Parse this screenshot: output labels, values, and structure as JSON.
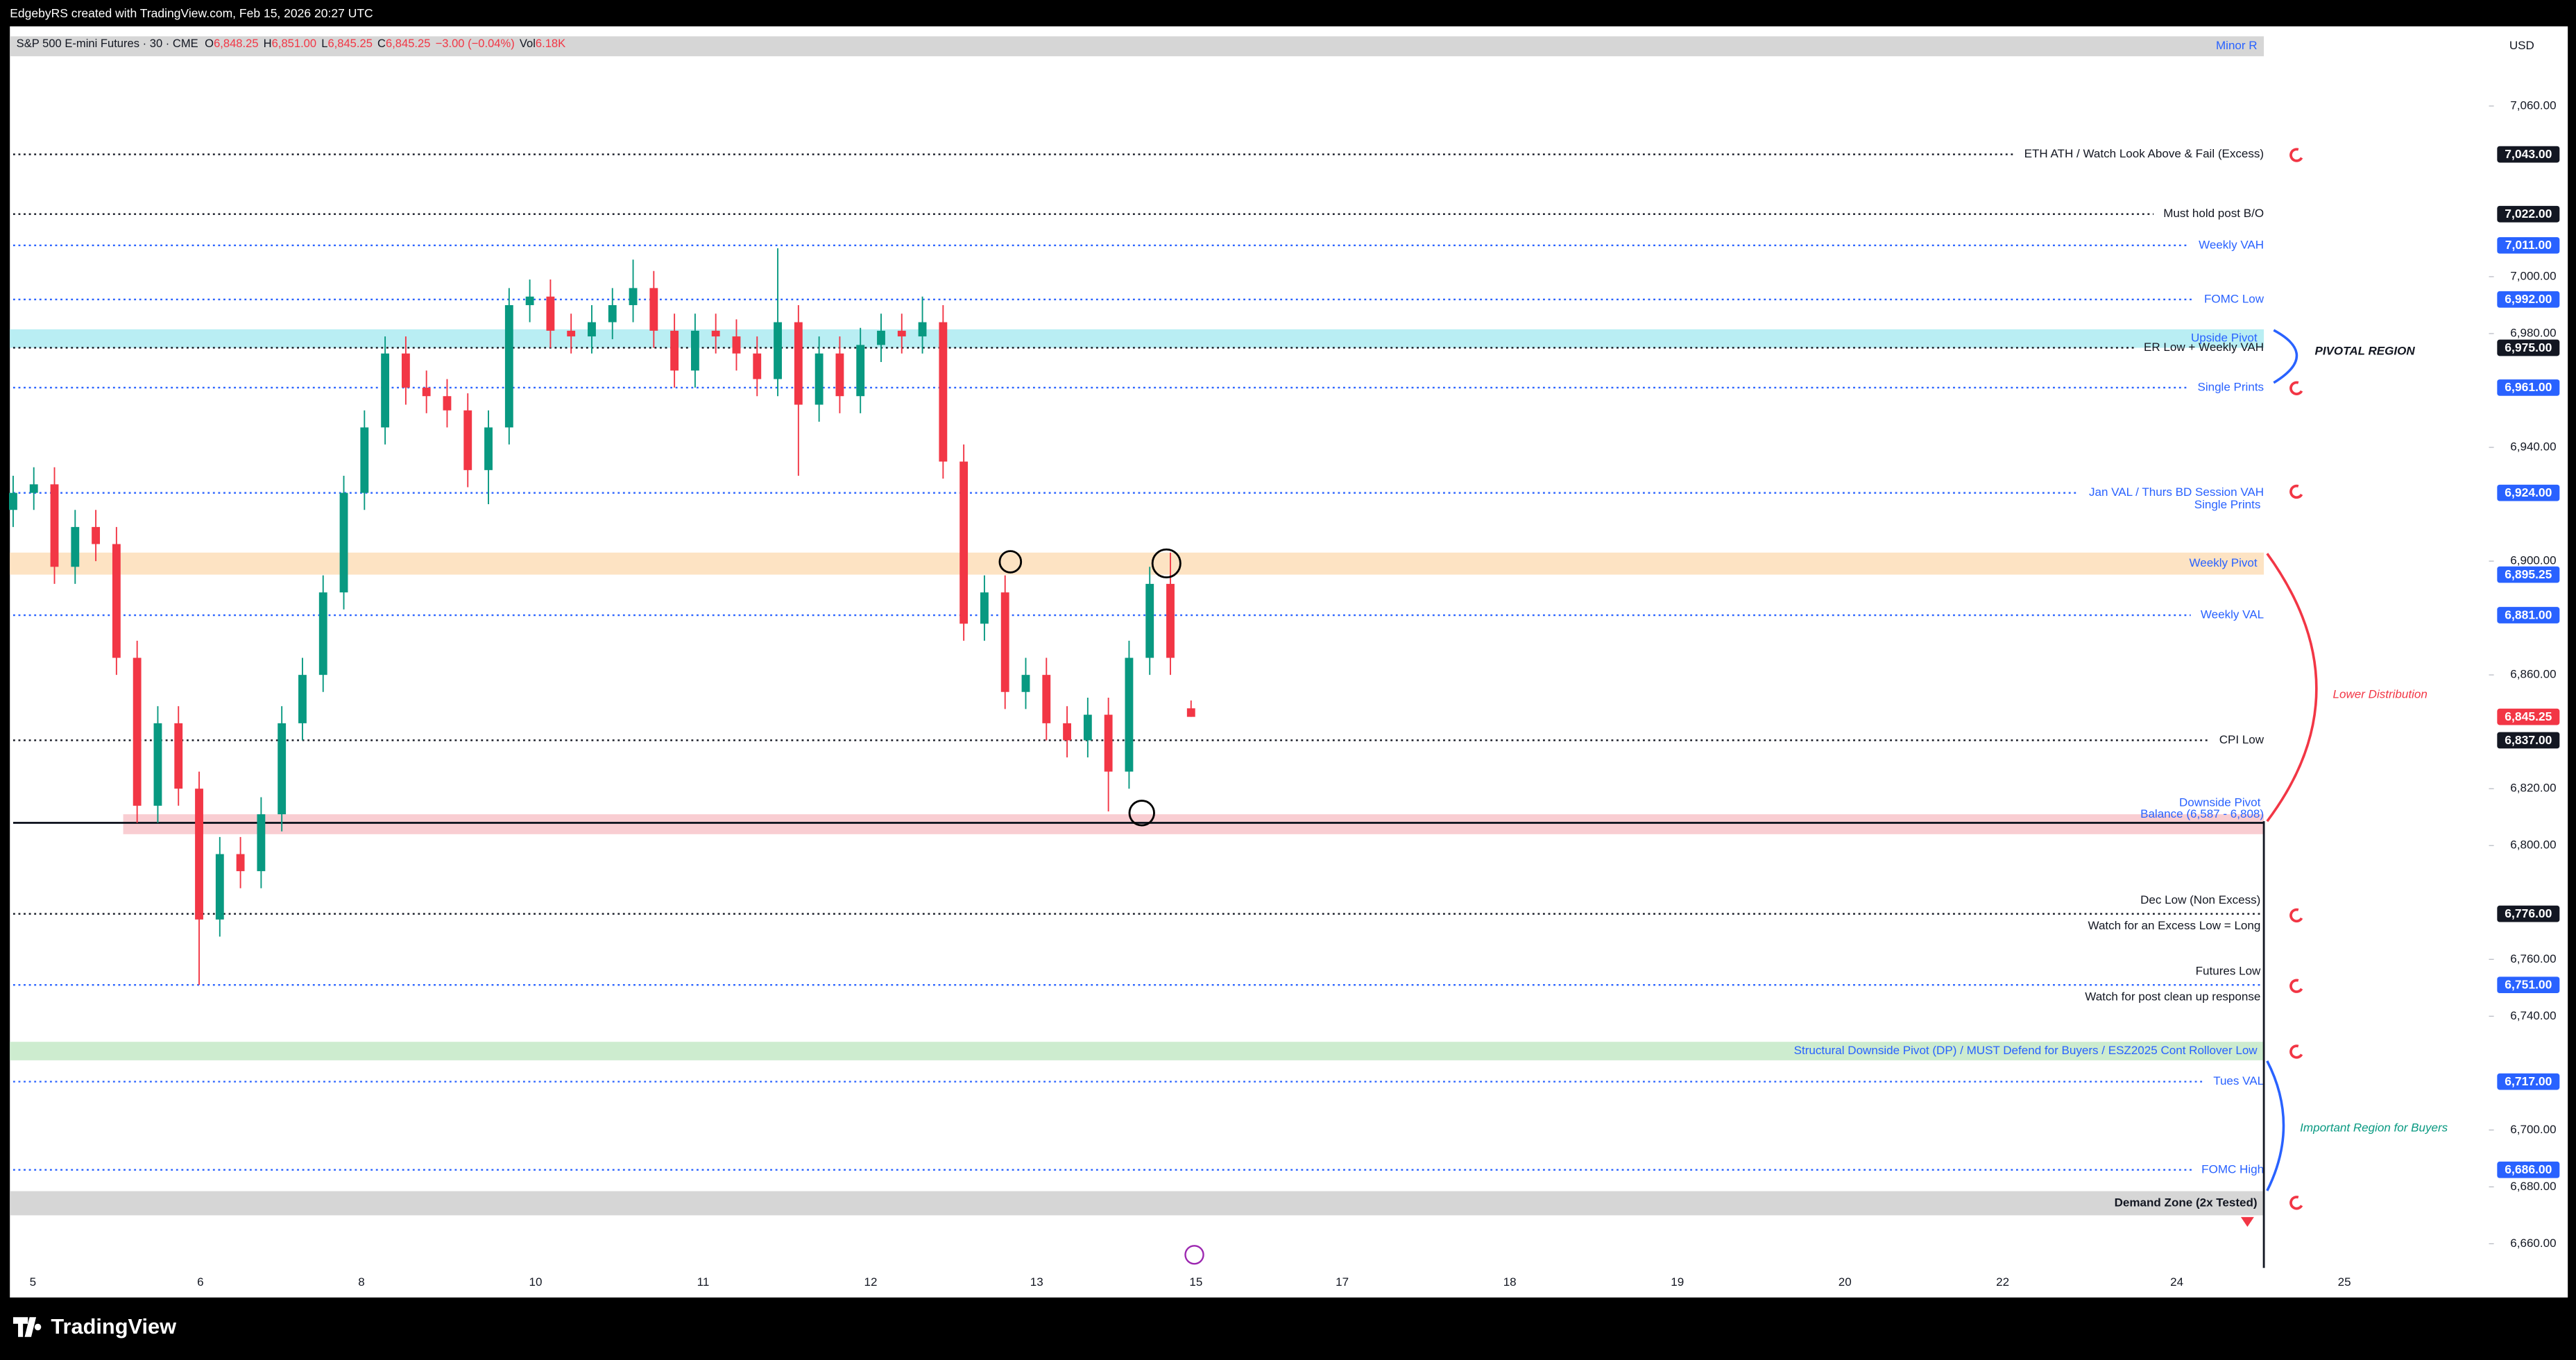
{
  "header": "EdgebyRS created with TradingView.com, Feb 15, 2026 20:27 UTC",
  "legend": {
    "symbol": "S&P 500 E-mini Futures · 30 · CME",
    "ohlc": [
      {
        "key": "O",
        "value": "6,848.25"
      },
      {
        "key": "H",
        "value": "6,851.00"
      },
      {
        "key": "L",
        "value": "6,845.25"
      },
      {
        "key": "C",
        "value": "6,845.25"
      }
    ],
    "change": "−3.00 (−0.04%)",
    "volume_key": "Vol",
    "volume": "6.18K"
  },
  "currency": "USD",
  "brand": "TradingView",
  "chart_data": {
    "type": "candlestick",
    "categories": [
      "5",
      "6",
      "8",
      "10",
      "11",
      "12",
      "13",
      "15",
      "17",
      "18",
      "19",
      "20",
      "22",
      "24",
      "25"
    ],
    "ylim": [
      6644,
      7088
    ],
    "yticks": [
      {
        "value": 7060,
        "label": "7,060.00"
      },
      {
        "value": 7000,
        "label": "7,000.00"
      },
      {
        "value": 6980,
        "label": "6,980.00"
      },
      {
        "value": 6940,
        "label": "6,940.00"
      },
      {
        "value": 6900,
        "label": "6,900.00"
      },
      {
        "value": 6860,
        "label": "6,860.00"
      },
      {
        "value": 6820,
        "label": "6,820.00"
      },
      {
        "value": 6800,
        "label": "6,800.00"
      },
      {
        "value": 6760,
        "label": "6,760.00"
      },
      {
        "value": 6740,
        "label": "6,740.00"
      },
      {
        "value": 6700,
        "label": "6,700.00"
      },
      {
        "value": 6680,
        "label": "6,680.00"
      },
      {
        "value": 6660,
        "label": "6,660.00"
      }
    ],
    "up_color": "#089981",
    "down_color": "#f23645",
    "open": [
      6918,
      6924,
      6927,
      6898,
      6912,
      6906,
      6866,
      6814,
      6843,
      6820,
      6774,
      6797,
      6791,
      6811,
      6843,
      6860,
      6889,
      6924,
      6947,
      6973,
      6961,
      6958,
      6953,
      6932,
      6947,
      6990,
      6993,
      6981,
      6979,
      6984,
      6990,
      6996,
      6981,
      6967,
      6981,
      6979,
      6973,
      6964,
      6984,
      6955,
      6973,
      6958,
      6976,
      6981,
      6979,
      6984,
      6935,
      6878,
      6889,
      6854,
      6860,
      6843,
      6837,
      6846,
      6826,
      6866,
      6892,
      6848.25
    ],
    "high": [
      6930,
      6933,
      6933,
      6918,
      6918,
      6912,
      6872,
      6849,
      6849,
      6826,
      6803,
      6803,
      6817,
      6849,
      6866,
      6895,
      6930,
      6953,
      6979,
      6979,
      6967,
      6964,
      6959,
      6953,
      6996,
      6999,
      6999,
      6987,
      6990,
      6996,
      7006,
      7002,
      6987,
      6987,
      6987,
      6985,
      6979,
      7010,
      6990,
      6979,
      6979,
      6982,
      6987,
      6987,
      6993,
      6990,
      6941,
      6895,
      6895,
      6866,
      6866,
      6849,
      6852,
      6852,
      6872,
      6898,
      6903,
      6851
    ],
    "low": [
      6912,
      6918,
      6892,
      6892,
      6900,
      6860,
      6808,
      6808,
      6814,
      6751,
      6768,
      6785,
      6785,
      6805,
      6837,
      6854,
      6883,
      6918,
      6941,
      6955,
      6952,
      6947,
      6926,
      6920,
      6941,
      6984,
      6975,
      6973,
      6973,
      6978,
      6984,
      6975,
      6961,
      6961,
      6973,
      6967,
      6958,
      6958,
      6930,
      6949,
      6952,
      6952,
      6970,
      6973,
      6973,
      6929,
      6872,
      6872,
      6848,
      6848,
      6837,
      6831,
      6831,
      6812,
      6820,
      6860,
      6860,
      6845.25
    ],
    "close": [
      6924,
      6927,
      6898,
      6912,
      6906,
      6866,
      6814,
      6843,
      6820,
      6774,
      6797,
      6791,
      6811,
      6843,
      6860,
      6889,
      6924,
      6947,
      6973,
      6961,
      6958,
      6953,
      6932,
      6947,
      6990,
      6993,
      6981,
      6979,
      6984,
      6990,
      6996,
      6981,
      6967,
      6981,
      6979,
      6973,
      6964,
      6984,
      6955,
      6973,
      6958,
      6976,
      6981,
      6979,
      6984,
      6935,
      6878,
      6889,
      6854,
      6860,
      6843,
      6837,
      6846,
      6826,
      6866,
      6892,
      6866,
      6845.25
    ],
    "last": {
      "value": 6845.25,
      "label": "6,845.25",
      "color": "#f23645"
    },
    "zones": [
      {
        "low": 7077.5,
        "high": 7084.5,
        "label": "Minor R",
        "color": "#d6d6d6",
        "text_color": "#2962ff"
      },
      {
        "low": 6975,
        "high": 6981.5,
        "label": "Upside Pivot",
        "color": "#b9eef3",
        "text_color": "#2962ff"
      },
      {
        "low": 6895.25,
        "high": 6903,
        "label": "Weekly Pivot",
        "color": "#fde3c3",
        "text_color": "#2962ff",
        "price_label": "6,895.25"
      },
      {
        "low": 6804,
        "high": 6811,
        "color": "#f9cdd2"
      },
      {
        "low": 6724.5,
        "high": 6731,
        "label": "Structural Downside Pivot (DP) / MUST Defend for Buyers / ESZ2025 Cont Rollover Low",
        "color": "#cdeccf",
        "text_color": "#2962ff"
      },
      {
        "low": 6670,
        "high": 6678.5,
        "label": "Demand Zone (2x Tested)",
        "color": "#d6d6d6",
        "text_color": "#131722"
      }
    ],
    "levels": [
      {
        "value": 7043,
        "label": "ETH ATH / Watch Look Above & Fail (Excess)",
        "color": "#131722",
        "price_label": "7,043.00"
      },
      {
        "value": 7022,
        "label": "Must hold post B/O",
        "color": "#131722",
        "price_label": "7,022.00"
      },
      {
        "value": 7011,
        "label": "Weekly VAH",
        "color": "#2962ff",
        "price_label": "7,011.00"
      },
      {
        "value": 6992,
        "label": "FOMC Low",
        "color": "#2962ff",
        "price_label": "6,992.00"
      },
      {
        "value": 6975,
        "label": "ER Low + Weekly VAH",
        "color": "#131722",
        "price_label": "6,975.00"
      },
      {
        "value": 6961,
        "label": "Single Prints",
        "color": "#2962ff",
        "price_label": "6,961.00"
      },
      {
        "value": 6924,
        "label": "Jan VAL / Thurs BD Session VAH",
        "below": "Single Prints",
        "color": "#2962ff",
        "price_label": "6,924.00"
      },
      {
        "value": 6881,
        "label": "Weekly VAL",
        "color": "#2962ff",
        "price_label": "6,881.00"
      },
      {
        "value": 6837,
        "label": "CPI Low",
        "color": "#131722",
        "price_label": "6,837.00"
      },
      {
        "value": 6808,
        "label": "Balance (6,587 - 6,808)",
        "above": "Downside Pivot",
        "color": "#131722",
        "text_color": "#2962ff",
        "style": "solid"
      },
      {
        "value": 6776,
        "above": "Dec Low (Non Excess)",
        "below": "Watch for an Excess Low = Long",
        "color": "#131722",
        "price_label": "6,776.00"
      },
      {
        "value": 6751,
        "above": "Futures Low",
        "below": "Watch for post clean up response",
        "color": "#2962ff",
        "text_color": "#131722",
        "price_label": "6,751.00"
      },
      {
        "value": 6717,
        "label": "Tues VAL",
        "color": "#2962ff",
        "price_label": "6,717.00"
      },
      {
        "value": 6686,
        "label": "FOMC High",
        "color": "#2962ff",
        "price_label": "6,686.00"
      }
    ],
    "annotations": [
      "PIVOTAL REGION",
      "Lower Distribution",
      "Important Region for Buyers"
    ]
  }
}
